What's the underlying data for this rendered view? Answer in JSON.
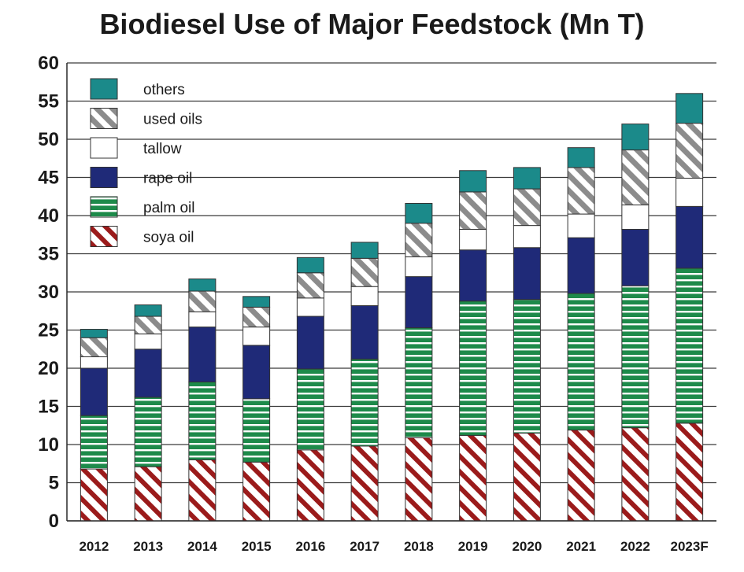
{
  "chart_data": {
    "type": "bar",
    "stacked": true,
    "title": "Biodiesel Use of Major Feedstock (Mn T)",
    "xlabel": "",
    "ylabel": "",
    "ylim": [
      0,
      60
    ],
    "yticks": [
      0,
      5,
      10,
      15,
      20,
      25,
      30,
      35,
      40,
      45,
      50,
      55,
      60
    ],
    "grid": "horizontal",
    "legend_placement": "top-left",
    "categories": [
      "2012",
      "2013",
      "2014",
      "2015",
      "2016",
      "2017",
      "2018",
      "2019",
      "2020",
      "2021",
      "2022",
      "2023F"
    ],
    "series": [
      {
        "name": "soya oil",
        "color": "#9b1b1b",
        "pattern": "diagonal-stripes",
        "values": [
          6.8,
          7.1,
          8.0,
          7.7,
          9.3,
          9.8,
          10.9,
          11.2,
          11.5,
          11.9,
          12.2,
          12.8
        ]
      },
      {
        "name": "palm oil",
        "color": "#1d8a4a",
        "pattern": "horizontal-stripes",
        "values": [
          7.0,
          9.1,
          10.2,
          8.3,
          10.6,
          11.4,
          14.4,
          17.6,
          17.5,
          17.9,
          18.6,
          20.3
        ]
      },
      {
        "name": "rape oil",
        "color": "#1f2a78",
        "pattern": "solid",
        "values": [
          6.2,
          6.3,
          7.2,
          7.0,
          6.9,
          7.0,
          6.7,
          6.7,
          6.8,
          7.3,
          7.4,
          8.1
        ]
      },
      {
        "name": "tallow",
        "color": "#ffffff",
        "pattern": "solid",
        "values": [
          1.5,
          2.0,
          2.0,
          2.4,
          2.4,
          2.5,
          2.6,
          2.7,
          2.9,
          3.1,
          3.2,
          3.7
        ]
      },
      {
        "name": "used oils",
        "color": "#8c8c8c",
        "pattern": "diagonal-stripes",
        "values": [
          2.5,
          2.3,
          2.7,
          2.6,
          3.3,
          3.7,
          4.4,
          4.9,
          4.8,
          6.1,
          7.2,
          7.2
        ]
      },
      {
        "name": "others",
        "color": "#1b8a8a",
        "pattern": "solid",
        "values": [
          1.1,
          1.5,
          1.6,
          1.4,
          2.0,
          2.1,
          2.6,
          2.8,
          2.8,
          2.6,
          3.4,
          3.9
        ]
      }
    ]
  }
}
